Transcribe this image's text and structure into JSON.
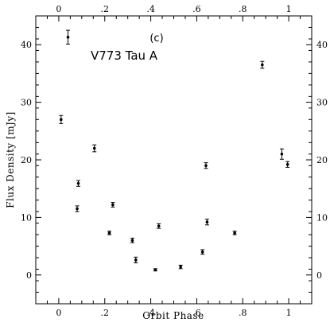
{
  "chart_data": {
    "type": "scatter",
    "panel_label": "(c)",
    "annotation": "V773 Tau A",
    "xlabel": "Orbit Phase",
    "ylabel": "Flux Density [mJy]",
    "xlim": [
      -0.1,
      1.1
    ],
    "ylim": [
      -5,
      45
    ],
    "x_ticks": [
      0,
      0.2,
      0.4,
      0.6,
      0.8,
      1
    ],
    "x_tick_labels": [
      "0",
      ".2",
      ".4",
      ".6",
      ".8",
      "1"
    ],
    "y_ticks": [
      0,
      10,
      20,
      30,
      40
    ],
    "y_tick_labels": [
      "0",
      "10",
      "20",
      "30",
      "40"
    ],
    "top_ticks": [
      0,
      0.2,
      0.4,
      0.6,
      0.8,
      1
    ],
    "top_tick_labels": [
      "0",
      ".2",
      ".4",
      ".6",
      ".8",
      "1"
    ],
    "right_ticks": [
      0,
      10,
      20,
      30,
      40
    ],
    "right_tick_labels": [
      "0",
      "10",
      "20",
      "30",
      "40"
    ],
    "grid": false,
    "legend": "none",
    "points": [
      {
        "x": 0.01,
        "y": 27.0,
        "err": 0.7
      },
      {
        "x": 0.04,
        "y": 41.3,
        "err": 1.2
      },
      {
        "x": 0.08,
        "y": 11.5,
        "err": 0.5
      },
      {
        "x": 0.085,
        "y": 15.9,
        "err": 0.5
      },
      {
        "x": 0.155,
        "y": 22.0,
        "err": 0.6
      },
      {
        "x": 0.22,
        "y": 7.3,
        "err": 0.3
      },
      {
        "x": 0.235,
        "y": 12.2,
        "err": 0.4
      },
      {
        "x": 0.32,
        "y": 6.0,
        "err": 0.4
      },
      {
        "x": 0.335,
        "y": 2.6,
        "err": 0.5
      },
      {
        "x": 0.42,
        "y": 0.9,
        "err": 0.2
      },
      {
        "x": 0.435,
        "y": 8.5,
        "err": 0.4
      },
      {
        "x": 0.53,
        "y": 1.4,
        "err": 0.3
      },
      {
        "x": 0.625,
        "y": 4.0,
        "err": 0.4
      },
      {
        "x": 0.64,
        "y": 19.0,
        "err": 0.5
      },
      {
        "x": 0.645,
        "y": 9.2,
        "err": 0.5
      },
      {
        "x": 0.765,
        "y": 7.3,
        "err": 0.3
      },
      {
        "x": 0.885,
        "y": 36.5,
        "err": 0.6
      },
      {
        "x": 0.97,
        "y": 21.0,
        "err": 0.9
      },
      {
        "x": 0.995,
        "y": 19.2,
        "err": 0.5
      }
    ]
  }
}
